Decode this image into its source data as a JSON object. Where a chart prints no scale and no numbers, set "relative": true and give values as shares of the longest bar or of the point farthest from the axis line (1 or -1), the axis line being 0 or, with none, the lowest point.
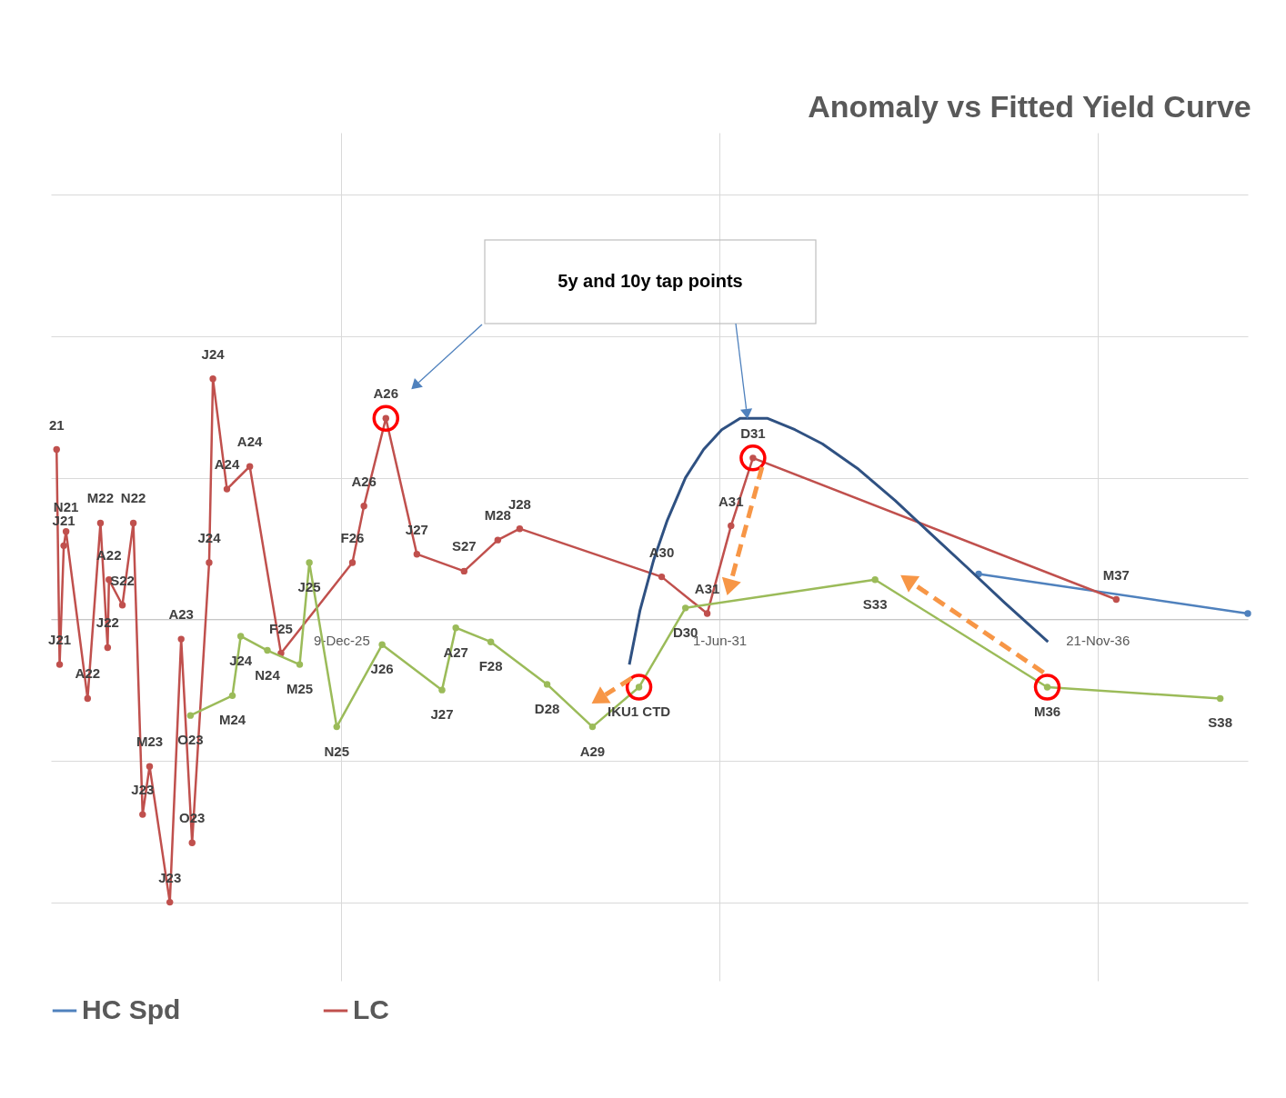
{
  "chart_data": {
    "type": "line",
    "title": "Anomaly vs Fitted Yield Curve",
    "relative": true,
    "grid": true,
    "legend": "bottom",
    "tick_labels": "x",
    "marker": "circle",
    "xlim": [
      "2021-09-24",
      "2039-01-25"
    ],
    "xticks": [
      {
        "value": "2025-12-09",
        "label": "9-Dec-25"
      },
      {
        "value": "2031-06-01",
        "label": "1-Jun-31"
      },
      {
        "value": "2036-11-21",
        "label": "21-Nov-36"
      }
    ],
    "series": [
      {
        "name": "HC Spd",
        "color": "#4f81bd",
        "x": [
          "2035-03-03",
          "2039-01-25"
        ],
        "values": [
          0.16,
          0.02
        ]
      },
      {
        "name": "LC",
        "color": "#c0504d",
        "x": [
          "2021-10-24",
          "2021-11-09",
          "2021-12-01",
          "2021-12-13",
          "2022-04-06",
          "2022-06-13",
          "2022-07-21",
          "2022-07-28",
          "2022-10-07",
          "2022-12-04",
          "2023-01-22",
          "2023-02-28",
          "2023-06-15",
          "2023-08-14",
          "2023-10-11",
          "2024-01-09",
          "2024-01-29",
          "2024-04-12",
          "2024-08-11",
          "2025-01-23",
          "2026-02-05",
          "2026-04-07",
          "2026-08-01",
          "2027-01-12",
          "2027-09-19",
          "2028-03-15",
          "2028-07-09",
          "2030-07-30",
          "2031-03-28",
          "2031-08-01",
          "2031-11-25",
          "2037-02-28"
        ],
        "values": [
          0.6,
          -0.16,
          0.26,
          0.31,
          -0.28,
          0.34,
          -0.1,
          0.14,
          0.05,
          0.34,
          -0.69,
          -0.52,
          -1.0,
          -0.07,
          -0.79,
          0.2,
          0.85,
          0.46,
          0.54,
          -0.12,
          0.2,
          0.4,
          0.71,
          0.23,
          0.17,
          0.28,
          0.32,
          0.15,
          0.02,
          0.33,
          0.57,
          0.07
        ]
      },
      {
        "color": "#9bbb59",
        "x": [
          "2023-10-02",
          "2024-05-11",
          "2024-06-24",
          "2024-11-12",
          "2025-05-02",
          "2025-06-22",
          "2025-11-14",
          "2026-07-12",
          "2027-05-25",
          "2027-08-06",
          "2028-02-07",
          "2028-12-01",
          "2029-07-29",
          "2030-04-01",
          "2030-12-03",
          "2033-09-01",
          "2036-02-29",
          "2038-09-01"
        ],
        "values": [
          -0.34,
          -0.27,
          -0.06,
          -0.11,
          -0.16,
          0.2,
          -0.38,
          -0.09,
          -0.25,
          -0.03,
          -0.08,
          -0.23,
          -0.38,
          -0.24,
          0.04,
          0.14,
          -0.24,
          -0.28
        ]
      },
      {
        "color": "#2f5182",
        "marker": "none",
        "x": [
          "2030-02-09",
          "2030-04-06",
          "2030-06-18",
          "2030-08-29",
          "2030-12-03",
          "2031-03-09",
          "2031-06-13",
          "2031-09-18",
          "2031-11-15",
          "2032-02-11",
          "2032-07-04",
          "2032-11-26",
          "2033-06-06",
          "2033-12-16",
          "2034-06-26",
          "2035-01-06",
          "2035-07-16",
          "2036-03-04"
        ],
        "values": [
          -0.16,
          0.03,
          0.21,
          0.35,
          0.5,
          0.6,
          0.67,
          0.71,
          0.71,
          0.71,
          0.67,
          0.62,
          0.53,
          0.42,
          0.3,
          0.18,
          0.06,
          -0.08
        ]
      }
    ],
    "annotations": [
      "5y and 10y tap points",
      {
        "text": "21",
        "x": "2021-10-24",
        "y": 0.6
      },
      {
        "text": "J21",
        "x": "2021-11-09",
        "y": -0.16
      },
      {
        "text": "J21",
        "x": "2021-12-01",
        "y": 0.26
      },
      {
        "text": "N21",
        "x": "2021-12-13",
        "y": 0.31
      },
      {
        "text": "A22",
        "x": "2022-04-06",
        "y": -0.28
      },
      {
        "text": "M22",
        "x": "2022-06-13",
        "y": 0.34
      },
      {
        "text": "J22",
        "x": "2022-07-21",
        "y": -0.1
      },
      {
        "text": "A22",
        "x": "2022-07-28",
        "y": 0.14
      },
      {
        "text": "S22",
        "x": "2022-10-07",
        "y": 0.05
      },
      {
        "text": "N22",
        "x": "2022-12-04",
        "y": 0.34
      },
      {
        "text": "J23",
        "x": "2023-01-22",
        "y": -0.69
      },
      {
        "text": "M23",
        "x": "2023-02-28",
        "y": -0.52
      },
      {
        "text": "J23",
        "x": "2023-06-15",
        "y": -1.0
      },
      {
        "text": "A23",
        "x": "2023-08-14",
        "y": -0.07
      },
      {
        "text": "O23",
        "x": "2023-10-11",
        "y": -0.79
      },
      {
        "text": "J24",
        "x": "2024-01-09",
        "y": 0.2
      },
      {
        "text": "J24",
        "x": "2024-01-29",
        "y": 0.85
      },
      {
        "text": "A24",
        "x": "2024-04-12",
        "y": 0.46
      },
      {
        "text": "A24",
        "x": "2024-08-11",
        "y": 0.54
      },
      {
        "text": "F25",
        "x": "2025-01-23",
        "y": -0.12
      },
      {
        "text": "F26",
        "x": "2026-02-05",
        "y": 0.2
      },
      {
        "text": "A26",
        "x": "2026-04-07",
        "y": 0.4
      },
      {
        "text": "A26",
        "x": "2026-08-01",
        "y": 0.71
      },
      {
        "text": "J27",
        "x": "2027-01-12",
        "y": 0.23
      },
      {
        "text": "S27",
        "x": "2027-09-19",
        "y": 0.17
      },
      {
        "text": "M28",
        "x": "2028-03-15",
        "y": 0.28
      },
      {
        "text": "J28",
        "x": "2028-07-09",
        "y": 0.32
      },
      {
        "text": "A30",
        "x": "2030-07-30",
        "y": 0.15
      },
      {
        "text": "A31",
        "x": "2031-03-28",
        "y": 0.02
      },
      {
        "text": "A31",
        "x": "2031-08-01",
        "y": 0.33
      },
      {
        "text": "D31",
        "x": "2031-11-25",
        "y": 0.57
      },
      {
        "text": "M37",
        "x": "2037-02-28",
        "y": 0.07
      },
      {
        "text": "O23",
        "x": "2023-10-02",
        "y": -0.34
      },
      {
        "text": "M24",
        "x": "2024-05-11",
        "y": -0.27
      },
      {
        "text": "J24",
        "x": "2024-06-24",
        "y": -0.06
      },
      {
        "text": "N24",
        "x": "2024-11-12",
        "y": -0.11
      },
      {
        "text": "M25",
        "x": "2025-05-02",
        "y": -0.16
      },
      {
        "text": "J25",
        "x": "2025-06-22",
        "y": 0.2
      },
      {
        "text": "N25",
        "x": "2025-11-14",
        "y": -0.38
      },
      {
        "text": "J26",
        "x": "2026-07-12",
        "y": -0.09
      },
      {
        "text": "J27",
        "x": "2027-05-25",
        "y": -0.25
      },
      {
        "text": "A27",
        "x": "2027-08-06",
        "y": -0.03
      },
      {
        "text": "F28",
        "x": "2028-02-07",
        "y": -0.08
      },
      {
        "text": "D28",
        "x": "2028-12-01",
        "y": -0.23
      },
      {
        "text": "A29",
        "x": "2029-07-29",
        "y": -0.38
      },
      {
        "text": "IKU1 CTD",
        "x": "2030-04-01",
        "y": -0.24
      },
      {
        "text": "D30",
        "x": "2030-12-03",
        "y": 0.04
      },
      {
        "text": "S33",
        "x": "2033-09-01",
        "y": 0.14
      },
      {
        "text": "M36",
        "x": "2036-02-29",
        "y": -0.24
      },
      {
        "text": "S38",
        "x": "2038-09-01",
        "y": -0.28
      }
    ]
  }
}
